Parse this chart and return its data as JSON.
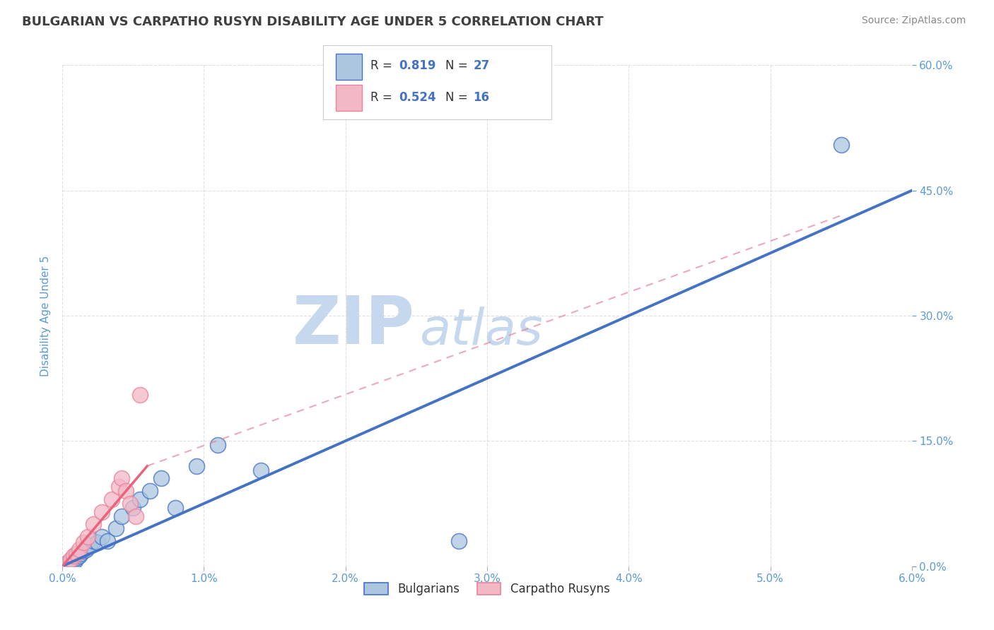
{
  "title": "BULGARIAN VS CARPATHO RUSYN DISABILITY AGE UNDER 5 CORRELATION CHART",
  "source": "Source: ZipAtlas.com",
  "ylabel": "Disability Age Under 5",
  "xlabel": "",
  "xlim": [
    0.0,
    6.0
  ],
  "ylim": [
    0.0,
    60.0
  ],
  "xticks": [
    0.0,
    1.0,
    2.0,
    3.0,
    4.0,
    5.0,
    6.0
  ],
  "yticks": [
    0.0,
    15.0,
    30.0,
    45.0,
    60.0
  ],
  "xtick_labels": [
    "0.0%",
    "1.0%",
    "2.0%",
    "3.0%",
    "4.0%",
    "5.0%",
    "6.0%"
  ],
  "ytick_labels": [
    "0.0%",
    "15.0%",
    "30.0%",
    "45.0%",
    "60.0%"
  ],
  "watermark_zip": "ZIP",
  "watermark_atlas": "atlas",
  "legend_r1": "R = ",
  "legend_v1": "0.819",
  "legend_n1_label": "N = ",
  "legend_n1_val": "27",
  "legend_r2": "R = ",
  "legend_v2": "0.524",
  "legend_n2_label": "N = ",
  "legend_n2_val": "16",
  "legend_label1": "Bulgarians",
  "legend_label2": "Carpatho Rusyns",
  "color_bulgarian": "#adc6e0",
  "color_rusyn": "#f2b8c6",
  "color_line_bulgarian": "#4472c4",
  "color_line_rusyn": "#e8839a",
  "color_line_rusyn_solid": "#e8637d",
  "background_color": "#ffffff",
  "grid_color": "#cccccc",
  "title_color": "#404040",
  "tick_label_color": "#5b9bd5",
  "legend_r_color": "#4472c4",
  "legend_n_color": "#333333",
  "watermark_zip_color": "#c5d8ed",
  "watermark_atlas_color": "#c5d8ed",
  "bulg_x": [
    0.04,
    0.06,
    0.07,
    0.08,
    0.09,
    0.1,
    0.12,
    0.13,
    0.15,
    0.17,
    0.19,
    0.22,
    0.25,
    0.28,
    0.32,
    0.38,
    0.42,
    0.5,
    0.55,
    0.62,
    0.7,
    0.8,
    0.95,
    1.1,
    1.4,
    2.8,
    5.5
  ],
  "bulg_y": [
    0.3,
    0.5,
    0.4,
    0.8,
    0.6,
    1.0,
    1.2,
    1.5,
    1.8,
    2.0,
    2.5,
    3.0,
    2.8,
    3.5,
    3.0,
    4.5,
    6.0,
    7.0,
    8.0,
    9.0,
    10.5,
    7.0,
    12.0,
    14.5,
    11.5,
    3.0,
    50.5
  ],
  "rusyn_x": [
    0.04,
    0.06,
    0.08,
    0.1,
    0.12,
    0.15,
    0.18,
    0.22,
    0.28,
    0.35,
    0.4,
    0.42,
    0.45,
    0.48,
    0.52,
    0.55
  ],
  "rusyn_y": [
    0.5,
    0.8,
    1.2,
    1.5,
    2.0,
    2.8,
    3.5,
    5.0,
    6.5,
    8.0,
    9.5,
    10.5,
    9.0,
    7.5,
    6.0,
    20.5
  ],
  "line_bulg_x0": 0.0,
  "line_bulg_y0": 0.0,
  "line_bulg_x1": 6.0,
  "line_bulg_y1": 45.0,
  "line_rusyn_solid_x0": 0.0,
  "line_rusyn_solid_y0": 0.0,
  "line_rusyn_solid_x1": 0.6,
  "line_rusyn_solid_y1": 12.0,
  "line_rusyn_dash_x0": 0.6,
  "line_rusyn_dash_y0": 12.0,
  "line_rusyn_dash_x1": 5.5,
  "line_rusyn_dash_y1": 42.0,
  "figwidth": 14.06,
  "figheight": 8.92,
  "dpi": 100
}
